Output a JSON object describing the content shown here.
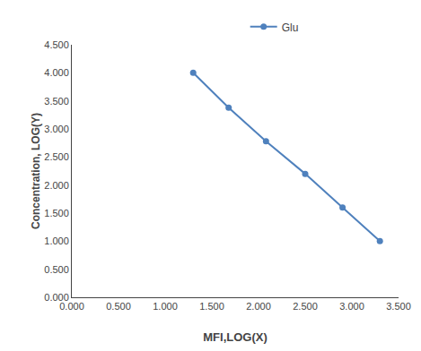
{
  "chart_data": {
    "type": "line",
    "x": [
      1.3,
      1.68,
      2.08,
      2.5,
      2.9,
      3.3
    ],
    "series": [
      {
        "name": "Glu",
        "color": "#4f81bd",
        "values": [
          4.0,
          3.38,
          2.78,
          2.2,
          1.6,
          1.0
        ],
        "marker": "circle",
        "line_style": "solid"
      }
    ],
    "xlabel": "MFI,LOG(X)",
    "ylabel": "Concentration, LOG(Y)",
    "xlim": [
      0.0,
      3.5
    ],
    "ylim": [
      0.0,
      4.5
    ],
    "xticks": [
      {
        "value": 0.0,
        "label": "0.000"
      },
      {
        "value": 0.5,
        "label": "0.500"
      },
      {
        "value": 1.0,
        "label": "1.000"
      },
      {
        "value": 1.5,
        "label": "1.500"
      },
      {
        "value": 2.0,
        "label": "2.000"
      },
      {
        "value": 2.5,
        "label": "2.500"
      },
      {
        "value": 3.0,
        "label": "3.000"
      },
      {
        "value": 3.5,
        "label": "3.500"
      }
    ],
    "yticks": [
      {
        "value": 0.0,
        "label": "0.000"
      },
      {
        "value": 0.5,
        "label": "0.500"
      },
      {
        "value": 1.0,
        "label": "1.000"
      },
      {
        "value": 1.5,
        "label": "1.500"
      },
      {
        "value": 2.0,
        "label": "2.000"
      },
      {
        "value": 2.5,
        "label": "2.500"
      },
      {
        "value": 3.0,
        "label": "3.000"
      },
      {
        "value": 3.5,
        "label": "3.500"
      },
      {
        "value": 4.0,
        "label": "4.000"
      },
      {
        "value": 4.5,
        "label": "4.500"
      }
    ],
    "grid": false,
    "legend": "top"
  }
}
